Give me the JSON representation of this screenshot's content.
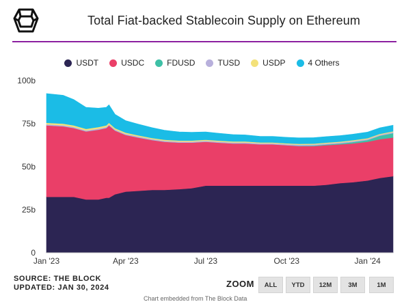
{
  "header": {
    "title": "Total Fiat-backed Stablecoin Supply on Ethereum",
    "accent_color": "#8b1fa0"
  },
  "legend": [
    {
      "label": "USDT",
      "color": "#2c2553"
    },
    {
      "label": "USDC",
      "color": "#ea3f68"
    },
    {
      "label": "FDUSD",
      "color": "#3ec0a6"
    },
    {
      "label": "TUSD",
      "color": "#b8b0dc"
    },
    {
      "label": "USDP",
      "color": "#f3e17a"
    },
    {
      "label": "4 Others",
      "color": "#1bbce6"
    }
  ],
  "source": {
    "line1": "SOURCE: THE BLOCK",
    "line2": "UPDATED: JAN 30, 2024"
  },
  "zoom": {
    "label": "ZOOM",
    "buttons": [
      "ALL",
      "YTD",
      "12M",
      "3M",
      "1M"
    ]
  },
  "footnote": "Chart embedded from The Block Data",
  "chart_data": {
    "type": "area",
    "stacked": true,
    "title": "Total Fiat-backed Stablecoin Supply on Ethereum",
    "xlabel": "",
    "ylabel": "",
    "x": [
      "2023-01-01",
      "2023-01-20",
      "2023-02-01",
      "2023-02-15",
      "2023-03-01",
      "2023-03-10",
      "2023-03-13",
      "2023-03-20",
      "2023-04-01",
      "2023-04-15",
      "2023-05-01",
      "2023-05-15",
      "2023-06-01",
      "2023-06-15",
      "2023-07-01",
      "2023-07-15",
      "2023-08-01",
      "2023-08-15",
      "2023-09-01",
      "2023-09-15",
      "2023-10-01",
      "2023-10-15",
      "2023-11-01",
      "2023-11-15",
      "2023-12-01",
      "2023-12-15",
      "2024-01-01",
      "2024-01-15",
      "2024-01-30"
    ],
    "x_ticks": [
      "Jan '23",
      "Apr '23",
      "Jul '23",
      "Oct '23",
      "Jan '24"
    ],
    "x_tick_dates": [
      "2023-01-01",
      "2023-04-01",
      "2023-07-01",
      "2023-10-01",
      "2024-01-01"
    ],
    "y_ticks": [
      "0",
      "25b",
      "50b",
      "75b",
      "100b"
    ],
    "y_tick_values": [
      0,
      25,
      50,
      75,
      100
    ],
    "ylim": [
      0,
      100
    ],
    "y_unit": "billions USD",
    "series": [
      {
        "name": "USDT",
        "color": "#2c2553",
        "values": [
          32.5,
          32.5,
          32.5,
          31.0,
          31.0,
          32.0,
          32.0,
          34.0,
          35.5,
          36.0,
          36.5,
          36.5,
          37.0,
          37.5,
          39.0,
          39.0,
          39.0,
          39.0,
          39.0,
          39.0,
          39.0,
          39.0,
          39.0,
          39.5,
          40.5,
          41.0,
          42.0,
          43.5,
          44.5
        ]
      },
      {
        "name": "USDC",
        "color": "#ea3f68",
        "values": [
          41.5,
          41.0,
          40.0,
          39.5,
          40.5,
          40.5,
          42.0,
          37.0,
          33.0,
          31.0,
          29.0,
          28.0,
          27.0,
          26.5,
          25.5,
          25.0,
          24.5,
          24.5,
          24.0,
          24.0,
          23.5,
          23.0,
          23.0,
          23.0,
          22.5,
          22.5,
          22.5,
          22.5,
          22.5
        ]
      },
      {
        "name": "FDUSD",
        "color": "#3ec0a6",
        "values": [
          0,
          0,
          0,
          0,
          0,
          0,
          0,
          0,
          0,
          0,
          0,
          0,
          0,
          0,
          0,
          0,
          0,
          0,
          0,
          0,
          0,
          0.2,
          0.3,
          0.4,
          0.5,
          0.8,
          1.0,
          2.0,
          2.5
        ]
      },
      {
        "name": "TUSD",
        "color": "#b8b0dc",
        "values": [
          0.6,
          0.6,
          0.6,
          0.6,
          0.6,
          0.6,
          0.6,
          0.6,
          0.6,
          0.6,
          0.6,
          0.6,
          0.6,
          0.6,
          0.6,
          0.6,
          0.6,
          0.6,
          0.6,
          0.6,
          0.6,
          0.6,
          0.6,
          0.6,
          0.6,
          0.6,
          0.6,
          0.6,
          0.6
        ]
      },
      {
        "name": "USDP",
        "color": "#f3e17a",
        "values": [
          0.9,
          0.9,
          0.9,
          0.9,
          0.9,
          0.9,
          0.9,
          0.8,
          0.7,
          0.7,
          0.6,
          0.6,
          0.6,
          0.6,
          0.6,
          0.6,
          0.6,
          0.6,
          0.5,
          0.5,
          0.5,
          0.5,
          0.5,
          0.5,
          0.5,
          0.5,
          0.5,
          0.5,
          0.5
        ]
      },
      {
        "name": "4 Others",
        "color": "#1bbce6",
        "values": [
          17.0,
          16.5,
          15.0,
          12.5,
          11.0,
          10.5,
          10.5,
          8.0,
          7.0,
          6.5,
          6.0,
          5.5,
          5.0,
          4.8,
          4.5,
          4.3,
          4.0,
          3.8,
          3.5,
          3.5,
          3.5,
          3.5,
          3.5,
          3.5,
          3.5,
          3.5,
          3.5,
          3.5,
          3.5
        ]
      }
    ],
    "legend_position": "top",
    "grid": false
  }
}
